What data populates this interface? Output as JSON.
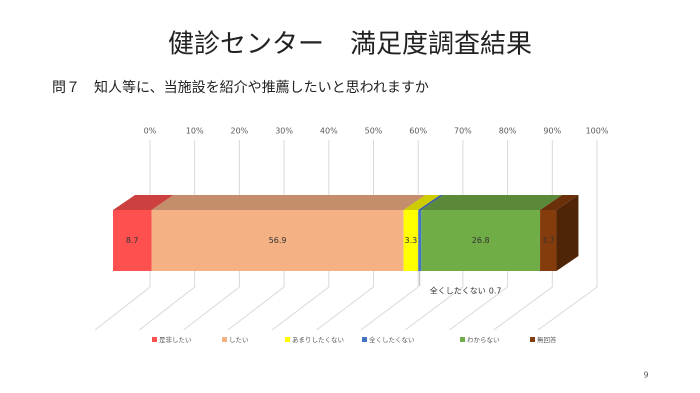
{
  "chart_data": {
    "type": "bar3d_stacked_h",
    "title": "健診センター　満足度調査結果",
    "subtitle": "問７　知人等に、当施設を紹介や推薦したいと思われますか",
    "categories": [
      null
    ],
    "xlim": [
      0,
      100
    ],
    "xticks": [
      {
        "value": 0,
        "label": "0%"
      },
      {
        "value": 10,
        "label": "10%"
      },
      {
        "value": 20,
        "label": "20%"
      },
      {
        "value": 30,
        "label": "30%"
      },
      {
        "value": 40,
        "label": "40%"
      },
      {
        "value": 50,
        "label": "50%"
      },
      {
        "value": 60,
        "label": "60%"
      },
      {
        "value": 70,
        "label": "70%"
      },
      {
        "value": 80,
        "label": "80%"
      },
      {
        "value": 90,
        "label": "90%"
      },
      {
        "value": 100,
        "label": "100%"
      }
    ],
    "grid": true,
    "legend": "bottom",
    "series": [
      {
        "name": "是非したい",
        "color": "#ff5050",
        "values": [
          8.7
        ]
      },
      {
        "name": "したい",
        "color": "#f4b183",
        "values": [
          56.9
        ]
      },
      {
        "name": "あまりしたくない",
        "color": "#ffff00",
        "values": [
          3.3
        ]
      },
      {
        "name": "全くしたくない",
        "color": "#4472c4",
        "values": [
          0.7
        ]
      },
      {
        "name": "わからない",
        "color": "#70ad47",
        "values": [
          26.8
        ]
      },
      {
        "name": "無回答",
        "color": "#843c0c",
        "values": [
          3.7
        ]
      }
    ]
  },
  "page_number": "9"
}
